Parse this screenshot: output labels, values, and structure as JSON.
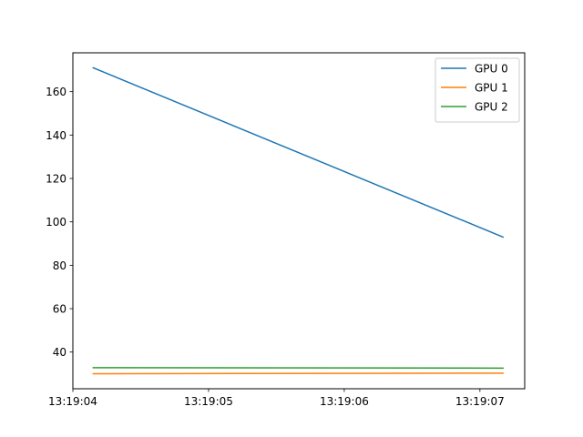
{
  "chart_data": {
    "type": "line",
    "title": "",
    "xlabel": "",
    "ylabel": "",
    "x": [
      "13:19:04.15",
      "13:19:07.17"
    ],
    "series": [
      {
        "name": "GPU 0",
        "color": "#1f77b4",
        "values": [
          171,
          93
        ]
      },
      {
        "name": "GPU 1",
        "color": "#ff7f0e",
        "values": [
          30,
          30.3
        ]
      },
      {
        "name": "GPU 2",
        "color": "#2ca02c",
        "values": [
          32.8,
          32.6
        ]
      }
    ],
    "xlim": [
      "13:19:04",
      "13:19:07.33"
    ],
    "ylim": [
      23.1,
      177.9
    ],
    "xticks": [
      "13:19:04",
      "13:19:05",
      "13:19:06",
      "13:19:07"
    ],
    "yticks": [
      40,
      60,
      80,
      100,
      120,
      140,
      160
    ],
    "grid": false,
    "legend": "top-right"
  }
}
